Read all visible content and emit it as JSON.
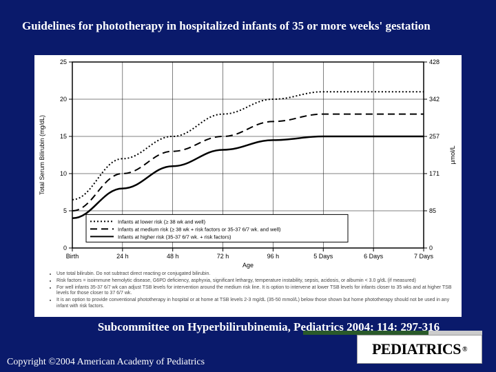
{
  "title": "Guidelines for phototherapy in hospitalized infants of 35 or more weeks' gestation",
  "citation": "Subcommittee on Hyperbilirubinemia,   Pediatrics 2004; 114: 297-316",
  "copyright": "Copyright ©2004 American Academy of Pediatrics",
  "logo_text": "PEDIATRICS",
  "chart": {
    "type": "line",
    "background_color": "#ffffff",
    "grid_color": "#000000",
    "axis_color": "#000000",
    "xlabel": "Age",
    "ylabel": "Total Serum Bilirubin (mg/dL)",
    "ylabel_right_unit": "µmol/L",
    "x_ticks": [
      "Birth",
      "24 h",
      "48 h",
      "72 h",
      "96 h",
      "5 Days",
      "6 Days",
      "7 Days"
    ],
    "y_left": {
      "min": 0,
      "max": 25,
      "step": 5
    },
    "y_right_values": [
      0,
      85,
      171,
      257,
      342,
      428
    ],
    "legend_items": [
      {
        "label": "Infants at lower risk (≥ 38 wk and well)",
        "dash": "2,3"
      },
      {
        "label": "Infants at medium risk (≥ 38 wk + risk factors or 35-37 6/7 wk. and well)",
        "dash": "10,6"
      },
      {
        "label": "Infants at higher risk (35-37 6/7 wk. + risk factors)",
        "dash": ""
      }
    ],
    "series": [
      {
        "name": "lower",
        "dash": "2,3",
        "width": 2,
        "color": "#000000",
        "points": [
          [
            0,
            6.5
          ],
          [
            24,
            12
          ],
          [
            48,
            15
          ],
          [
            72,
            18
          ],
          [
            96,
            20
          ],
          [
            120,
            21
          ],
          [
            144,
            21
          ],
          [
            168,
            21
          ]
        ]
      },
      {
        "name": "medium",
        "dash": "10,6",
        "width": 2,
        "color": "#000000",
        "points": [
          [
            0,
            5
          ],
          [
            24,
            10
          ],
          [
            48,
            13
          ],
          [
            72,
            15
          ],
          [
            96,
            17
          ],
          [
            120,
            18
          ],
          [
            144,
            18
          ],
          [
            168,
            18
          ]
        ]
      },
      {
        "name": "higher",
        "dash": "",
        "width": 2.5,
        "color": "#000000",
        "points": [
          [
            0,
            4
          ],
          [
            24,
            8
          ],
          [
            48,
            11
          ],
          [
            72,
            13.2
          ],
          [
            96,
            14.5
          ],
          [
            120,
            15
          ],
          [
            144,
            15
          ],
          [
            168,
            15
          ]
        ]
      }
    ],
    "tick_fontsize": 9,
    "label_fontsize": 9
  },
  "notes": [
    "Use total bilirubin. Do not subtract direct reacting or conjugated bilirubin.",
    "Risk factors = isoimmune hemolytic disease, G6PD deficiency, asphyxia, significant lethargy, temperature instability, sepsis, acidosis, or albumin < 3.0 g/dL (if measured)",
    "For well infants 35-37 6/7 wk can adjust TSB levels for intervention around the medium risk line. It is option to intervene at lower TSB levels for infants closer to 35 wks and at higher TSB levels for those closer to 37 6/7 wk.",
    "It is an option to provide conventional phototherapy in hospital or at home at TSB levels 2-3 mg/dL (35-50 mmol/L) below those shown but home phototherapy should not be used in any infant with risk factors."
  ]
}
